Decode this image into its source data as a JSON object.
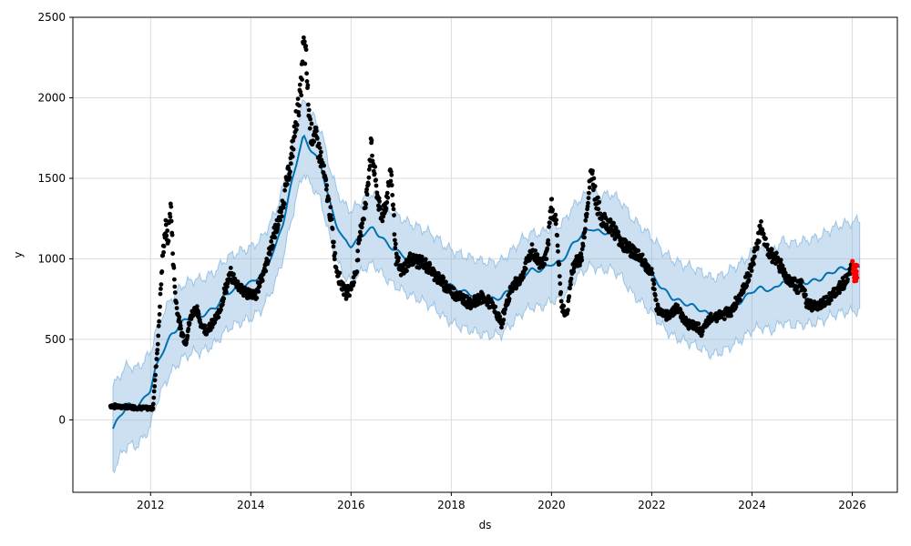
{
  "chart_data": {
    "type": "line",
    "xlabel": "ds",
    "ylabel": "y",
    "xlim": [
      2010.45,
      2026.9
    ],
    "ylim": [
      -450,
      2500
    ],
    "x_ticks": [
      2012,
      2014,
      2016,
      2018,
      2020,
      2022,
      2024,
      2026
    ],
    "x_tick_labels": [
      "2012",
      "2014",
      "2016",
      "2018",
      "2020",
      "2022",
      "2024",
      "2026"
    ],
    "y_ticks": [
      0,
      500,
      1000,
      1500,
      2000,
      2500
    ],
    "y_tick_labels": [
      "0",
      "500",
      "1000",
      "1500",
      "2000",
      "2500"
    ],
    "grid": true,
    "colors": {
      "forecast": "#0072B2",
      "interval": "#7fb2dc",
      "observed": "#000000",
      "recent": "#ff0000",
      "grid": "#dddddd"
    },
    "forecast": [
      [
        2011.25,
        -55
      ],
      [
        2011.4,
        30
      ],
      [
        2011.55,
        95
      ],
      [
        2011.7,
        75
      ],
      [
        2011.85,
        120
      ],
      [
        2012.0,
        190
      ],
      [
        2012.1,
        320
      ],
      [
        2012.25,
        430
      ],
      [
        2012.4,
        520
      ],
      [
        2012.5,
        555
      ],
      [
        2012.6,
        600
      ],
      [
        2012.75,
        630
      ],
      [
        2012.9,
        650
      ],
      [
        2013.0,
        645
      ],
      [
        2013.15,
        670
      ],
      [
        2013.3,
        700
      ],
      [
        2013.45,
        760
      ],
      [
        2013.6,
        800
      ],
      [
        2013.75,
        820
      ],
      [
        2013.9,
        840
      ],
      [
        2014.0,
        850
      ],
      [
        2014.2,
        900
      ],
      [
        2014.35,
        980
      ],
      [
        2014.5,
        1080
      ],
      [
        2014.65,
        1230
      ],
      [
        2014.8,
        1450
      ],
      [
        2014.95,
        1650
      ],
      [
        2015.05,
        1760
      ],
      [
        2015.15,
        1700
      ],
      [
        2015.25,
        1660
      ],
      [
        2015.4,
        1580
      ],
      [
        2015.5,
        1450
      ],
      [
        2015.6,
        1320
      ],
      [
        2015.7,
        1220
      ],
      [
        2015.85,
        1120
      ],
      [
        2016.0,
        1080
      ],
      [
        2016.15,
        1120
      ],
      [
        2016.3,
        1170
      ],
      [
        2016.45,
        1190
      ],
      [
        2016.55,
        1150
      ],
      [
        2016.7,
        1100
      ],
      [
        2016.85,
        1060
      ],
      [
        2017.0,
        1030
      ],
      [
        2017.15,
        1000
      ],
      [
        2017.3,
        980
      ],
      [
        2017.5,
        950
      ],
      [
        2017.7,
        910
      ],
      [
        2017.85,
        860
      ],
      [
        2018.0,
        830
      ],
      [
        2018.2,
        800
      ],
      [
        2018.4,
        780
      ],
      [
        2018.6,
        760
      ],
      [
        2018.8,
        750
      ],
      [
        2019.0,
        760
      ],
      [
        2019.2,
        820
      ],
      [
        2019.4,
        890
      ],
      [
        2019.6,
        930
      ],
      [
        2019.8,
        930
      ],
      [
        2020.0,
        970
      ],
      [
        2020.2,
        980
      ],
      [
        2020.4,
        1080
      ],
      [
        2020.6,
        1150
      ],
      [
        2020.8,
        1190
      ],
      [
        2021.0,
        1160
      ],
      [
        2021.2,
        1170
      ],
      [
        2021.4,
        1120
      ],
      [
        2021.6,
        1020
      ],
      [
        2021.8,
        960
      ],
      [
        2022.0,
        900
      ],
      [
        2022.2,
        820
      ],
      [
        2022.4,
        760
      ],
      [
        2022.6,
        730
      ],
      [
        2022.8,
        710
      ],
      [
        2023.0,
        680
      ],
      [
        2023.2,
        640
      ],
      [
        2023.4,
        660
      ],
      [
        2023.6,
        700
      ],
      [
        2023.8,
        740
      ],
      [
        2024.0,
        800
      ],
      [
        2024.2,
        820
      ],
      [
        2024.4,
        800
      ],
      [
        2024.6,
        860
      ],
      [
        2024.8,
        840
      ],
      [
        2025.0,
        850
      ],
      [
        2025.2,
        860
      ],
      [
        2025.4,
        880
      ],
      [
        2025.6,
        920
      ],
      [
        2025.8,
        940
      ],
      [
        2026.0,
        950
      ],
      [
        2026.15,
        960
      ]
    ],
    "band_width": [
      [
        2011.25,
        260
      ],
      [
        2012.0,
        230
      ],
      [
        2014.0,
        220
      ],
      [
        2016.0,
        220
      ],
      [
        2020.0,
        230
      ],
      [
        2024.0,
        240
      ],
      [
        2026.15,
        280
      ]
    ],
    "observed": [
      [
        2011.2,
        85
      ],
      [
        2011.5,
        80
      ],
      [
        2011.8,
        75
      ],
      [
        2012.0,
        70
      ],
      [
        2012.05,
        75
      ],
      [
        2012.1,
        300
      ],
      [
        2012.15,
        500
      ],
      [
        2012.2,
        800
      ],
      [
        2012.25,
        1050
      ],
      [
        2012.3,
        1200
      ],
      [
        2012.35,
        1100
      ],
      [
        2012.4,
        1350
      ],
      [
        2012.45,
        1000
      ],
      [
        2012.5,
        750
      ],
      [
        2012.55,
        650
      ],
      [
        2012.6,
        560
      ],
      [
        2012.7,
        480
      ],
      [
        2012.8,
        640
      ],
      [
        2012.9,
        700
      ],
      [
        2013.0,
        600
      ],
      [
        2013.1,
        560
      ],
      [
        2013.2,
        580
      ],
      [
        2013.35,
        650
      ],
      [
        2013.5,
        820
      ],
      [
        2013.6,
        900
      ],
      [
        2013.7,
        860
      ],
      [
        2013.85,
        800
      ],
      [
        2014.0,
        780
      ],
      [
        2014.1,
        770
      ],
      [
        2014.2,
        880
      ],
      [
        2014.3,
        950
      ],
      [
        2014.4,
        1080
      ],
      [
        2014.5,
        1180
      ],
      [
        2014.6,
        1280
      ],
      [
        2014.7,
        1450
      ],
      [
        2014.8,
        1600
      ],
      [
        2014.9,
        1850
      ],
      [
        2015.0,
        2050
      ],
      [
        2015.05,
        2330
      ],
      [
        2015.1,
        2250
      ],
      [
        2015.15,
        1950
      ],
      [
        2015.2,
        1780
      ],
      [
        2015.3,
        1750
      ],
      [
        2015.4,
        1620
      ],
      [
        2015.5,
        1450
      ],
      [
        2015.6,
        1250
      ],
      [
        2015.7,
        950
      ],
      [
        2015.8,
        850
      ],
      [
        2015.9,
        780
      ],
      [
        2016.0,
        820
      ],
      [
        2016.1,
        920
      ],
      [
        2016.2,
        1200
      ],
      [
        2016.3,
        1350
      ],
      [
        2016.4,
        1700
      ],
      [
        2016.5,
        1450
      ],
      [
        2016.6,
        1250
      ],
      [
        2016.7,
        1350
      ],
      [
        2016.8,
        1550
      ],
      [
        2016.9,
        1000
      ],
      [
        2017.0,
        920
      ],
      [
        2017.2,
        1000
      ],
      [
        2017.4,
        980
      ],
      [
        2017.6,
        930
      ],
      [
        2017.8,
        860
      ],
      [
        2018.0,
        800
      ],
      [
        2018.2,
        760
      ],
      [
        2018.4,
        720
      ],
      [
        2018.6,
        760
      ],
      [
        2018.8,
        720
      ],
      [
        2019.0,
        600
      ],
      [
        2019.2,
        820
      ],
      [
        2019.4,
        880
      ],
      [
        2019.6,
        1050
      ],
      [
        2019.75,
        980
      ],
      [
        2019.9,
        1000
      ],
      [
        2020.0,
        1350
      ],
      [
        2020.1,
        1200
      ],
      [
        2020.2,
        700
      ],
      [
        2020.3,
        650
      ],
      [
        2020.4,
        900
      ],
      [
        2020.5,
        1000
      ],
      [
        2020.6,
        1000
      ],
      [
        2020.7,
        1300
      ],
      [
        2020.8,
        1550
      ],
      [
        2020.9,
        1350
      ],
      [
        2021.0,
        1250
      ],
      [
        2021.2,
        1200
      ],
      [
        2021.4,
        1100
      ],
      [
        2021.6,
        1050
      ],
      [
        2021.8,
        1000
      ],
      [
        2022.0,
        900
      ],
      [
        2022.1,
        700
      ],
      [
        2022.3,
        640
      ],
      [
        2022.5,
        700
      ],
      [
        2022.7,
        600
      ],
      [
        2022.9,
        580
      ],
      [
        2023.0,
        550
      ],
      [
        2023.2,
        640
      ],
      [
        2023.4,
        650
      ],
      [
        2023.6,
        680
      ],
      [
        2023.8,
        800
      ],
      [
        2024.0,
        950
      ],
      [
        2024.1,
        1100
      ],
      [
        2024.2,
        1200
      ],
      [
        2024.3,
        1050
      ],
      [
        2024.5,
        1000
      ],
      [
        2024.7,
        880
      ],
      [
        2024.9,
        830
      ],
      [
        2025.0,
        830
      ],
      [
        2025.1,
        720
      ],
      [
        2025.3,
        700
      ],
      [
        2025.5,
        740
      ],
      [
        2025.7,
        800
      ],
      [
        2025.9,
        880
      ],
      [
        2026.0,
        950
      ]
    ],
    "recent": [
      [
        2026.02,
        960
      ],
      [
        2026.04,
        920
      ],
      [
        2026.06,
        880
      ],
      [
        2026.08,
        940
      ],
      [
        2026.1,
        900
      ]
    ]
  }
}
